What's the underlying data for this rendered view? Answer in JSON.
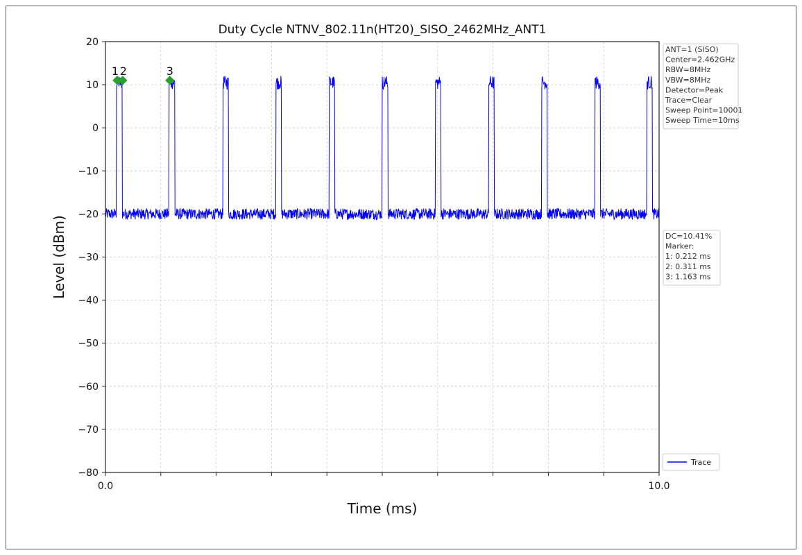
{
  "chart_data": {
    "type": "line",
    "title": "Duty Cycle NTNV_802.11n(HT20)_SISO_2462MHz_ANT1",
    "xlabel": "Time (ms)",
    "ylabel": "Level (dBm)",
    "xlim": [
      0,
      10
    ],
    "ylim": [
      -80,
      20
    ],
    "x_tick_labels": [
      "0.0",
      "10.0"
    ],
    "y_ticks": [
      20,
      10,
      0,
      -10,
      -20,
      -30,
      -40,
      -50,
      -60,
      -70,
      -80
    ],
    "y_tick_labels": [
      "20",
      "10",
      "0",
      "−10",
      "−20",
      "−30",
      "−40",
      "−50",
      "−60",
      "−70",
      "−80"
    ],
    "grid": true,
    "legend": {
      "position": "bottom-right",
      "entries": [
        "Trace"
      ]
    },
    "series": [
      {
        "name": "Trace",
        "color": "#0000ff",
        "noise_floor_dbm": -20,
        "burst_level_dbm": 10.5,
        "burst_width_ms": 0.1,
        "burst_starts_ms": [
          0.2,
          1.15,
          2.12,
          3.08,
          4.04,
          5.0,
          5.96,
          6.92,
          7.88,
          8.84,
          9.78
        ]
      }
    ],
    "markers": [
      {
        "label": "1",
        "x": 0.212,
        "y": 11
      },
      {
        "label": "2",
        "x": 0.311,
        "y": 11
      },
      {
        "label": "3",
        "x": 1.163,
        "y": 11
      }
    ],
    "marker_color": "#2ca02c",
    "info_box": [
      "ANT=1 (SISO)",
      "Center=2.462GHz",
      "RBW=8MHz",
      "VBW=8MHz",
      "Detector=Peak",
      "Trace=Clear",
      "Sweep Point=10001",
      "Sweep Time=10ms"
    ],
    "result_box": [
      "DC=10.41%",
      "Marker:",
      "1: 0.212 ms",
      "2: 0.311 ms",
      "3: 1.163 ms"
    ]
  }
}
